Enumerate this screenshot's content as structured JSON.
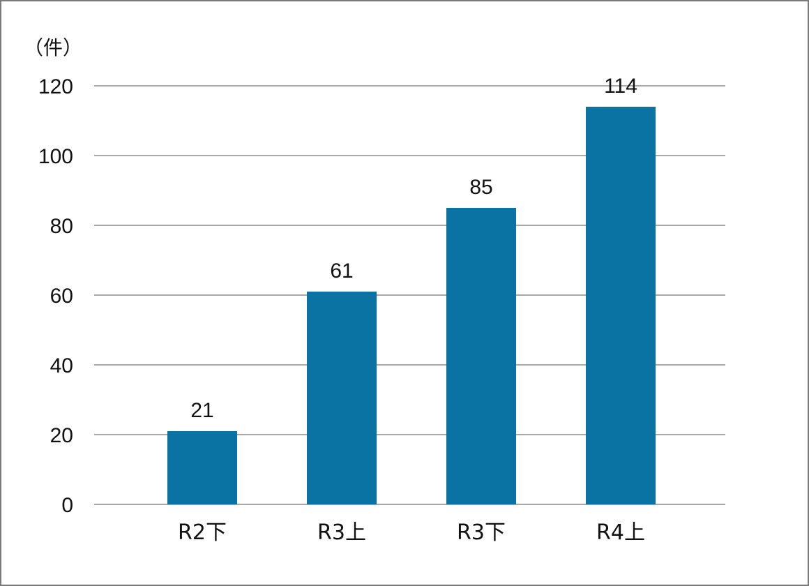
{
  "chart_data": {
    "type": "bar",
    "categories": [
      "R2下",
      "R3上",
      "R3下",
      "R4上"
    ],
    "values": [
      21,
      61,
      85,
      114
    ],
    "data_labels": [
      "21",
      "61",
      "85",
      "114"
    ],
    "ylabel": "（件）",
    "ylim": [
      0,
      120
    ],
    "yticks": [
      0,
      20,
      40,
      60,
      80,
      100,
      120
    ],
    "ytick_labels": [
      "0",
      "20",
      "40",
      "60",
      "80",
      "100",
      "120"
    ],
    "grid": true,
    "legend": "none",
    "bar_color": "#0b72a4"
  }
}
